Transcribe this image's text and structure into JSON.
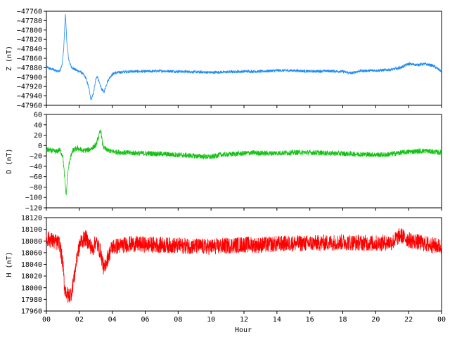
{
  "chart_data": [
    {
      "type": "line",
      "ylabel": "Z (nT)",
      "ylim": [
        -47960,
        -47760
      ],
      "yticks": [
        -47960,
        -47940,
        -47920,
        -47900,
        -47880,
        -47860,
        -47840,
        -47820,
        -47800,
        -47780,
        -47760
      ],
      "xlim": [
        0,
        24
      ],
      "grid": false,
      "color": "#1f8bf0",
      "series": [
        {
          "x": [
            0,
            0.2,
            0.5,
            0.8,
            0.95,
            1.05,
            1.15,
            1.25,
            1.35,
            1.5,
            1.65,
            1.8,
            2.0,
            2.2,
            2.4,
            2.6,
            2.7,
            2.85,
            3.0,
            3.1,
            3.2,
            3.35,
            3.5,
            3.7,
            3.9,
            4.1,
            4.4,
            5,
            6,
            7,
            8,
            9,
            10,
            11,
            12,
            13,
            14,
            15,
            16,
            17,
            18,
            18.5,
            19,
            20,
            21,
            21.5,
            22,
            22.5,
            23,
            23.5,
            24
          ],
          "y": [
            -47878,
            -47882,
            -47885,
            -47888,
            -47875,
            -47840,
            -47765,
            -47830,
            -47862,
            -47878,
            -47882,
            -47885,
            -47888,
            -47892,
            -47902,
            -47925,
            -47948,
            -47935,
            -47905,
            -47898,
            -47912,
            -47925,
            -47932,
            -47910,
            -47898,
            -47892,
            -47890,
            -47888,
            -47888,
            -47887,
            -47888,
            -47889,
            -47890,
            -47889,
            -47888,
            -47888,
            -47886,
            -47886,
            -47888,
            -47887,
            -47888,
            -47892,
            -47887,
            -47886,
            -47884,
            -47880,
            -47872,
            -47874,
            -47872,
            -47876,
            -47888
          ],
          "noise": 3
        }
      ]
    },
    {
      "type": "line",
      "ylabel": "D (nT)",
      "ylim": [
        -120,
        60
      ],
      "yticks": [
        -120,
        -100,
        -80,
        -60,
        -40,
        -20,
        0,
        20,
        40,
        60
      ],
      "xlim": [
        0,
        24
      ],
      "grid": false,
      "color": "#14c214",
      "series": [
        {
          "x": [
            0,
            0.3,
            0.6,
            0.8,
            1.0,
            1.1,
            1.2,
            1.3,
            1.4,
            1.6,
            1.9,
            2.2,
            2.6,
            3.0,
            3.3,
            3.4,
            3.5,
            3.8,
            4.1,
            5,
            6,
            7,
            8,
            9,
            10,
            10.5,
            11.5,
            12.5,
            13.5,
            14.5,
            15.5,
            16.5,
            17.5,
            18.5,
            19.5,
            20.5,
            21.2,
            22,
            23,
            24
          ],
          "y": [
            -8,
            -10,
            -12,
            -8,
            -20,
            -60,
            -95,
            -55,
            -30,
            -10,
            -5,
            -10,
            -8,
            0,
            30,
            5,
            -5,
            -10,
            -12,
            -14,
            -15,
            -16,
            -18,
            -20,
            -22,
            -18,
            -16,
            -14,
            -15,
            -14,
            -13,
            -14,
            -15,
            -16,
            -17,
            -18,
            -15,
            -12,
            -10,
            -14
          ],
          "noise": 5
        }
      ]
    },
    {
      "type": "line",
      "ylabel": "H (nT)",
      "ylim": [
        17960,
        18120
      ],
      "yticks": [
        17960,
        17980,
        18000,
        18020,
        18040,
        18060,
        18080,
        18100,
        18120
      ],
      "xlim": [
        0,
        24
      ],
      "grid": false,
      "color": "#ff0000",
      "xlabel": "Hour",
      "xtick_labels": [
        "00",
        "02",
        "04",
        "06",
        "08",
        "10",
        "12",
        "14",
        "16",
        "18",
        "20",
        "22",
        "00"
      ],
      "series": [
        {
          "x": [
            0,
            0.4,
            0.8,
            1.0,
            1.1,
            1.3,
            1.5,
            1.7,
            1.9,
            2.1,
            2.4,
            2.8,
            3.0,
            3.3,
            3.5,
            3.7,
            4.0,
            4.5,
            5,
            6,
            7,
            8,
            9,
            10,
            11,
            12,
            13,
            14,
            15,
            16,
            17,
            18,
            19,
            20,
            21,
            21.5,
            22,
            23,
            24
          ],
          "y": [
            18085,
            18080,
            18075,
            18040,
            18000,
            17985,
            17990,
            18020,
            18060,
            18080,
            18085,
            18065,
            18080,
            18060,
            18030,
            18050,
            18070,
            18072,
            18075,
            18074,
            18073,
            18072,
            18071,
            18070,
            18072,
            18074,
            18073,
            18075,
            18076,
            18076,
            18077,
            18078,
            18077,
            18076,
            18078,
            18090,
            18082,
            18075,
            18070
          ],
          "noise": 14
        }
      ]
    }
  ]
}
